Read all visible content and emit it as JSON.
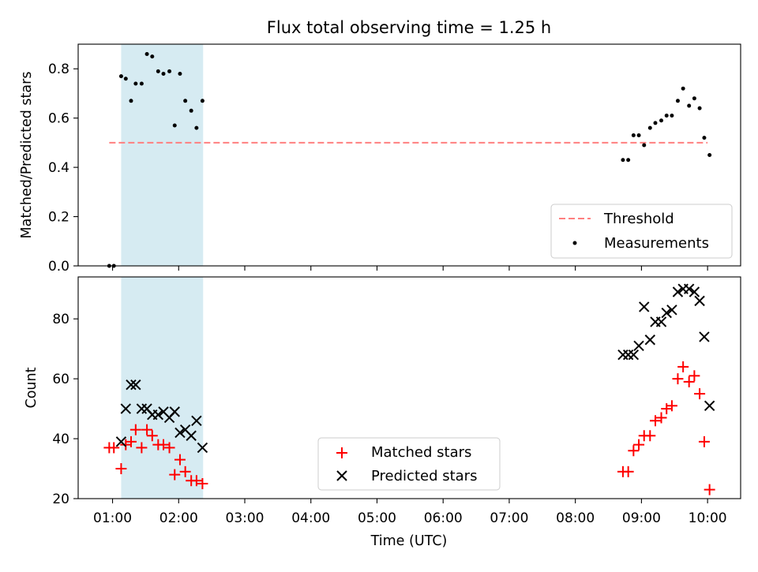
{
  "figure": {
    "title": "Flux total observing time = 1.25 h",
    "xlabel": "Time (UTC)"
  },
  "colors": {
    "threshold": "#ff7f7f",
    "shade": "#add8e6",
    "measurement": "#000000",
    "matched": "#ff0000",
    "predicted": "#000000"
  },
  "chart_data": [
    {
      "type": "scatter",
      "panel": "top",
      "ylabel": "Matched/Predicted stars",
      "xlim": [
        0.48,
        10.5
      ],
      "ylim": [
        0.0,
        0.9
      ],
      "yticks": [
        0.0,
        0.2,
        0.4,
        0.6,
        0.8
      ],
      "ytick_labels": [
        "0.0",
        "0.2",
        "0.4",
        "0.6",
        "0.8"
      ],
      "shaded_region": [
        1.13,
        2.37
      ],
      "legend_position": "lower right",
      "threshold": {
        "name": "Threshold",
        "y": 0.5,
        "x": [
          0.95,
          10.0
        ]
      },
      "series": [
        {
          "name": "Measurements",
          "x": [
            0.95,
            1.02,
            1.13,
            1.2,
            1.28,
            1.35,
            1.44,
            1.52,
            1.6,
            1.69,
            1.77,
            1.86,
            1.94,
            2.02,
            2.1,
            2.19,
            2.27,
            2.36,
            8.72,
            8.8,
            8.88,
            8.96,
            9.04,
            9.13,
            9.21,
            9.3,
            9.38,
            9.46,
            9.55,
            9.63,
            9.72,
            9.8,
            9.88,
            9.95,
            10.03
          ],
          "y": [
            0.0,
            0.0,
            0.77,
            0.76,
            0.67,
            0.74,
            0.74,
            0.86,
            0.85,
            0.79,
            0.78,
            0.79,
            0.57,
            0.78,
            0.67,
            0.63,
            0.56,
            0.67,
            0.43,
            0.43,
            0.53,
            0.53,
            0.49,
            0.56,
            0.58,
            0.59,
            0.61,
            0.61,
            0.67,
            0.72,
            0.65,
            0.68,
            0.64,
            0.52,
            0.45
          ]
        }
      ]
    },
    {
      "type": "scatter",
      "panel": "bottom",
      "ylabel": "Count",
      "xlim": [
        0.48,
        10.5
      ],
      "ylim": [
        20,
        94
      ],
      "yticks": [
        20,
        40,
        60,
        80
      ],
      "ytick_labels": [
        "20",
        "40",
        "60",
        "80"
      ],
      "shaded_region": [
        1.13,
        2.37
      ],
      "legend_position": "lower center",
      "xticks": [
        1,
        2,
        3,
        4,
        5,
        6,
        7,
        8,
        9,
        10
      ],
      "xtick_labels": [
        "01:00",
        "02:00",
        "03:00",
        "04:00",
        "05:00",
        "06:00",
        "07:00",
        "08:00",
        "09:00",
        "10:00"
      ],
      "series": [
        {
          "name": "Matched stars",
          "marker": "+",
          "x": [
            0.95,
            1.02,
            1.13,
            1.2,
            1.28,
            1.35,
            1.44,
            1.52,
            1.6,
            1.69,
            1.77,
            1.86,
            1.94,
            2.02,
            2.1,
            2.19,
            2.27,
            2.36,
            8.72,
            8.8,
            8.88,
            8.96,
            9.04,
            9.13,
            9.21,
            9.3,
            9.38,
            9.46,
            9.55,
            9.63,
            9.72,
            9.8,
            9.88,
            9.95,
            10.03
          ],
          "y": [
            37,
            37,
            30,
            38,
            39,
            43,
            37,
            43,
            41,
            38,
            38,
            37,
            28,
            33,
            29,
            26,
            26,
            25,
            29,
            29,
            36,
            38,
            41,
            41,
            46,
            47,
            50,
            51,
            60,
            64,
            59,
            61,
            55,
            39,
            23
          ]
        },
        {
          "name": "Predicted stars",
          "marker": "x",
          "x": [
            1.13,
            1.2,
            1.28,
            1.35,
            1.44,
            1.52,
            1.6,
            1.69,
            1.77,
            1.86,
            1.94,
            2.02,
            2.1,
            2.19,
            2.27,
            2.36,
            8.72,
            8.8,
            8.88,
            8.96,
            9.04,
            9.13,
            9.21,
            9.3,
            9.38,
            9.46,
            9.55,
            9.63,
            9.72,
            9.8,
            9.88,
            9.95,
            10.03
          ],
          "y": [
            39,
            50,
            58,
            58,
            50,
            50,
            48,
            48,
            49,
            47,
            49,
            42,
            43,
            41,
            46,
            37,
            68,
            68,
            68,
            71,
            84,
            73,
            79,
            79,
            82,
            83,
            89,
            90,
            90,
            89,
            86,
            74,
            51
          ]
        }
      ]
    }
  ]
}
